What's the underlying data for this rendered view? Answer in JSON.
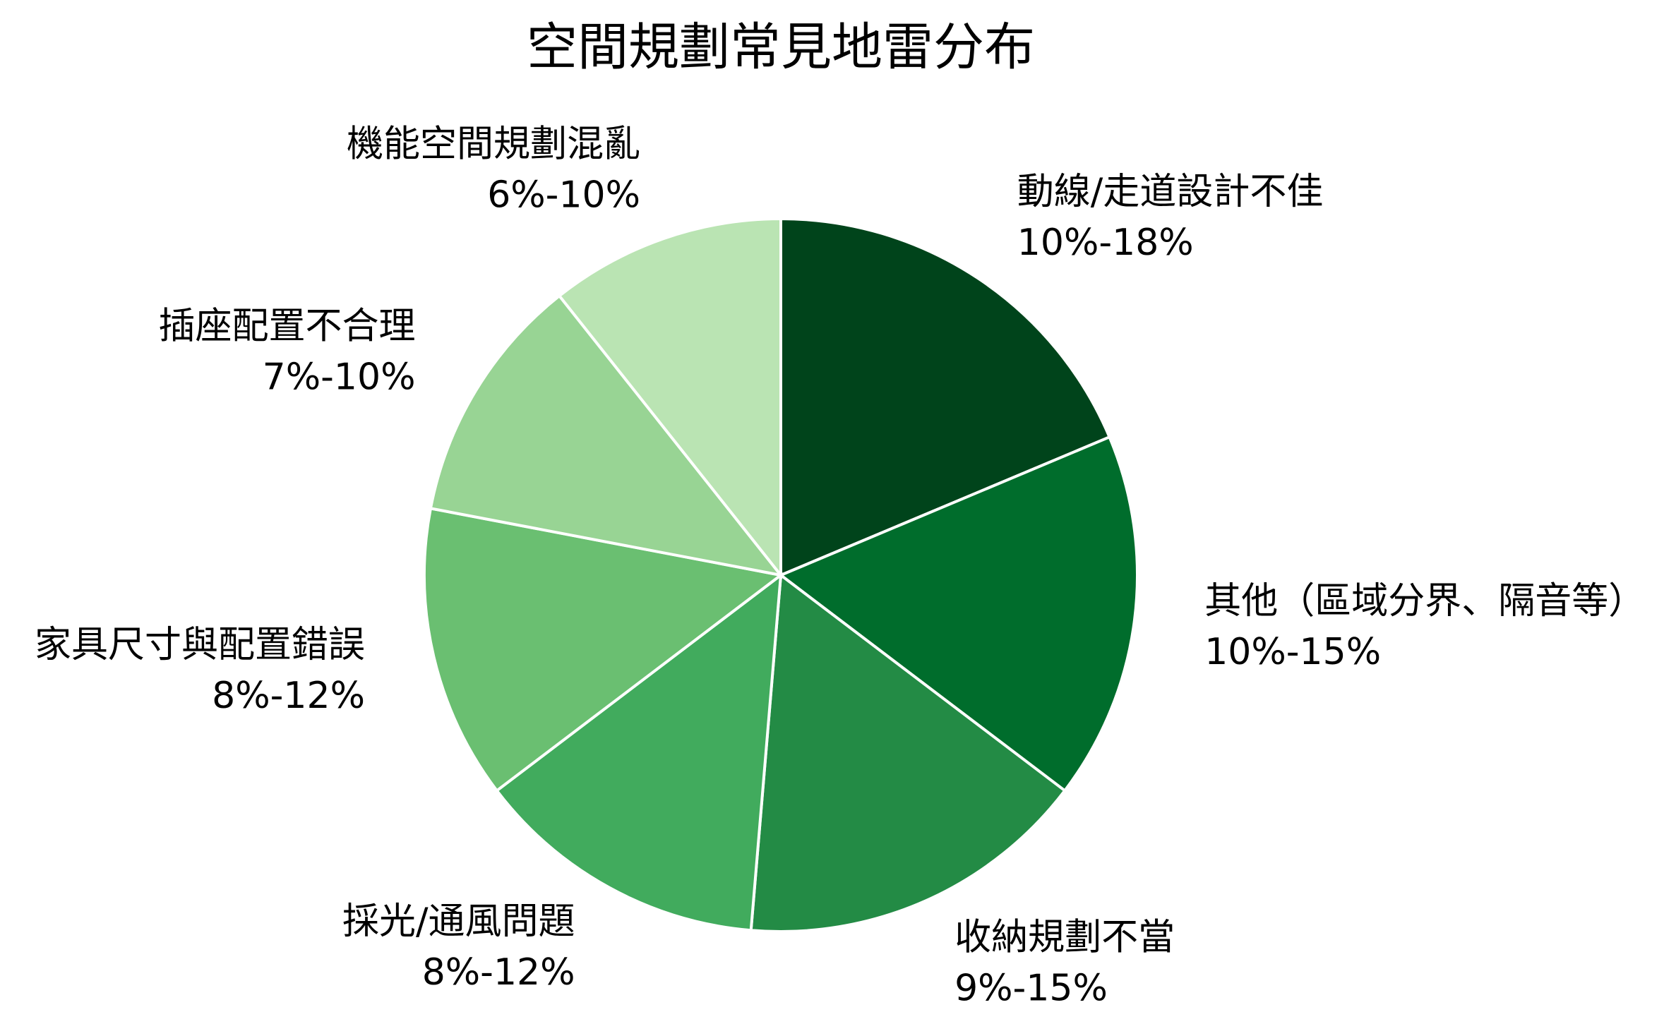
{
  "chart_data": {
    "type": "pie",
    "title": "空間規劃常見地雷分布",
    "categories": [
      "動線/走道設計不佳",
      "其他（區域分界、隔音等）",
      "收納規劃不當",
      "採光/通風問題",
      "家具尺寸與配置錯誤",
      "插座配置不合理",
      "機能空間規劃混亂"
    ],
    "values": [
      14,
      12.5,
      12,
      10,
      10,
      8.5,
      8
    ],
    "value_labels": [
      "10%-18%",
      "10%-15%",
      "9%-15%",
      "8%-12%",
      "8%-12%",
      "7%-10%",
      "6%-10%"
    ],
    "colors": [
      "#00441b",
      "#006d2c",
      "#238b45",
      "#41ab5d",
      "#6abf71",
      "#98d494",
      "#bae4b3"
    ]
  }
}
